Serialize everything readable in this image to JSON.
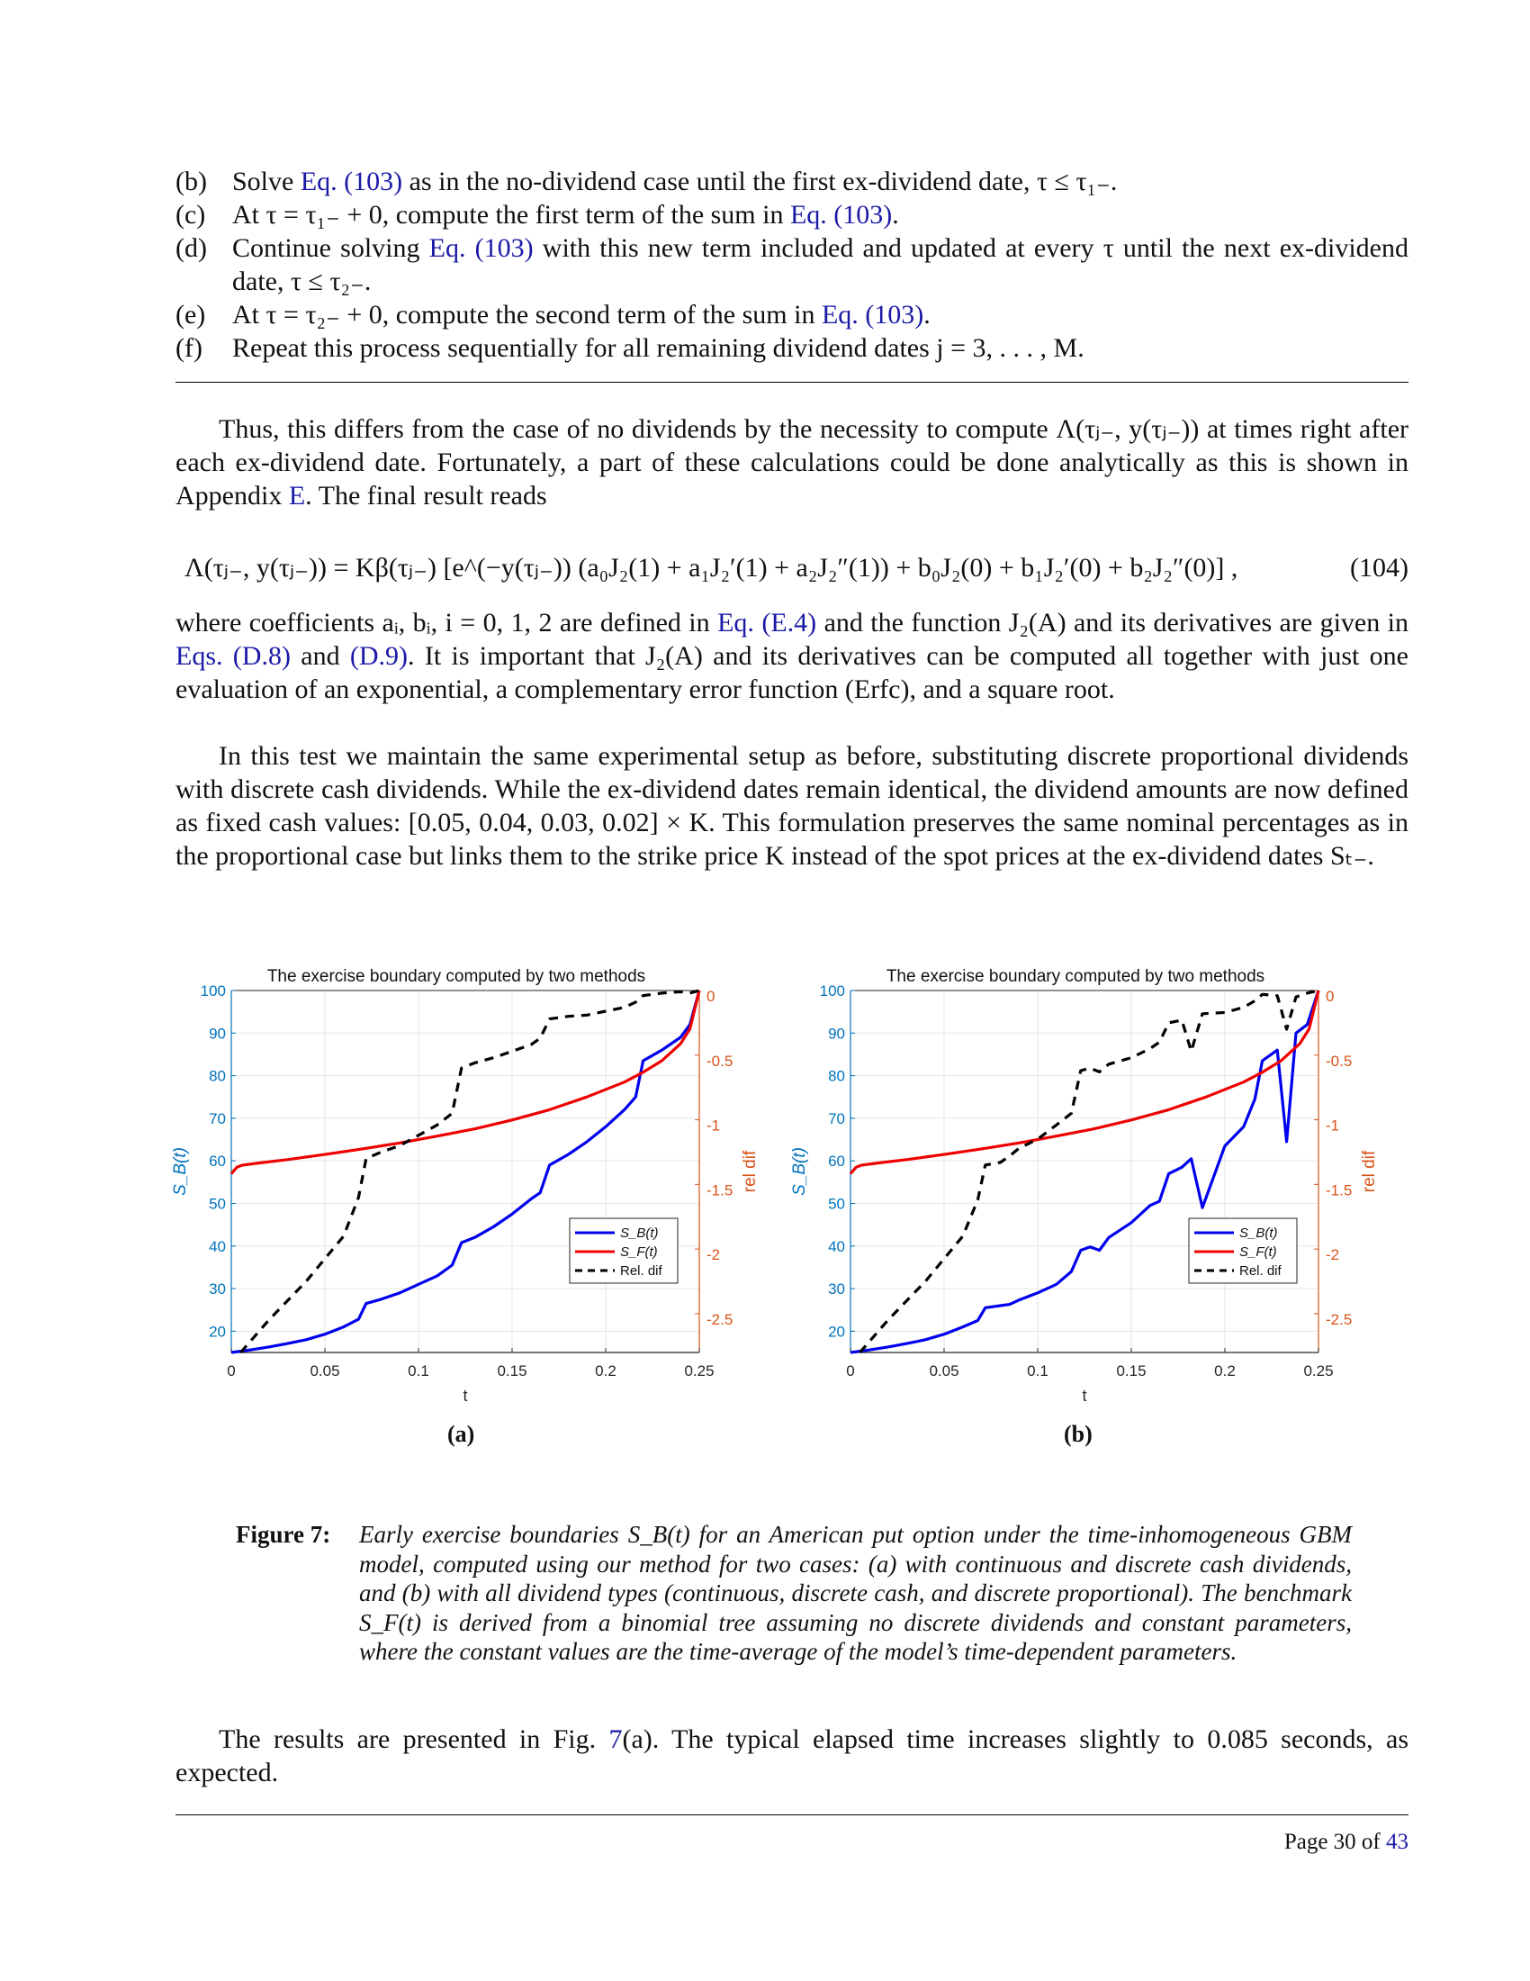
{
  "steps": [
    {
      "label": "(b)",
      "pre": "Solve ",
      "link": "Eq. (103)",
      "post": " as in the no-dividend case until the first ex-dividend date, τ ≤ τ₁₋."
    },
    {
      "label": "(c)",
      "pre": "At τ = τ₁₋ + 0, compute the first term of the sum in ",
      "link": "Eq. (103)",
      "post": "."
    },
    {
      "label": "(d)",
      "pre": "Continue solving ",
      "link": "Eq. (103)",
      "post": " with this new term included and updated at every τ until the next ex-dividend date, τ ≤ τ₂₋."
    },
    {
      "label": "(e)",
      "pre": "At τ = τ₂₋ + 0, compute the second term of the sum in ",
      "link": "Eq. (103)",
      "post": "."
    },
    {
      "label": "(f)",
      "pre": "Repeat this process sequentially for all remaining dividend dates j = 3, . . . , M.",
      "link": "",
      "post": ""
    }
  ],
  "para1": {
    "pre": "Thus, this differs from the case of no dividends by the necessity to compute Λ(τⱼ₋, y(τⱼ₋)) at times right after each ex-dividend date. Fortunately, a part of these calculations could be done analytically as this is shown in Appendix ",
    "link": "E",
    "post": ". The final result reads"
  },
  "equation": {
    "text": "Λ(τⱼ₋, y(τⱼ₋)) = Kβ(τⱼ₋) [e^(−y(τⱼ₋)) (a₀J₂(1) + a₁J₂′(1) + a₂J₂″(1)) + b₀J₂(0) + b₁J₂′(0) + b₂J₂″(0)] ,",
    "number": "(104)"
  },
  "para2": {
    "p1": "where coefficients aᵢ, bᵢ, i = 0, 1, 2 are defined in ",
    "l1": "Eq. (E.4)",
    "p2": " and the function J₂(A) and its derivatives are given in ",
    "l2": "Eqs. (D.8)",
    "p3": " and ",
    "l3": "(D.9)",
    "p4": ". It is important that J₂(A) and its derivatives can be computed all together with just one evaluation of an exponential, a complementary error function (Erfc), and a square root."
  },
  "para3": "In this test we maintain the same experimental setup as before, substituting discrete proportional dividends with discrete cash dividends. While the ex-dividend dates remain identical, the dividend amounts are now defined as fixed cash values: [0.05, 0.04, 0.03, 0.02] × K. This formulation preserves the same nominal percentages as in the proportional case but links them to the strike price K instead of the spot prices at the ex-dividend dates Sₜ₋.",
  "figure": {
    "colors": {
      "sb": "#0000ee",
      "sf": "#ee0000",
      "rel": "#000000",
      "left_axis": "#0072bd",
      "right_axis": "#d95319"
    },
    "legend": [
      "S_B(t)",
      "S_F(t)",
      "Rel. dif"
    ],
    "sublabels": [
      "(a)",
      "(b)"
    ]
  },
  "chart_data": [
    {
      "type": "line",
      "title": "The exercise boundary computed by two methods",
      "xlabel": "t",
      "ylabel": "S_B(t)",
      "y2label": "rel dif",
      "xlim": [
        0,
        0.25
      ],
      "ylim": [
        15,
        100
      ],
      "y2lim": [
        -2.8,
        0
      ],
      "xticks": [
        "0",
        "0.05",
        "0.1",
        "0.15",
        "0.2",
        "0.25"
      ],
      "yticks": [
        "20",
        "30",
        "40",
        "50",
        "60",
        "70",
        "80",
        "90",
        "100"
      ],
      "y2ticks": [
        "0",
        "-0.5",
        "-1",
        "-1.5",
        "-2",
        "-2.5"
      ],
      "grid": true,
      "legend_position": "center-right",
      "series": [
        {
          "name": "S_B(t)",
          "axis": "left",
          "x": [
            0,
            0.01,
            0.02,
            0.03,
            0.04,
            0.05,
            0.06,
            0.068,
            0.072,
            0.08,
            0.09,
            0.1,
            0.11,
            0.118,
            0.123,
            0.13,
            0.14,
            0.15,
            0.16,
            0.165,
            0.17,
            0.18,
            0.19,
            0.2,
            0.21,
            0.216,
            0.22,
            0.23,
            0.24,
            0.245,
            0.25
          ],
          "y": [
            15,
            15.6,
            16.3,
            17.1,
            18,
            19.3,
            21,
            22.8,
            26.5,
            27.5,
            29,
            31,
            33,
            35.5,
            40.8,
            42,
            44.5,
            47.5,
            51,
            52.5,
            59,
            61.5,
            64.5,
            68,
            72,
            75,
            83.5,
            86,
            89,
            92,
            100
          ]
        },
        {
          "name": "S_F(t)",
          "axis": "left",
          "x": [
            0,
            0.003,
            0.006,
            0.015,
            0.03,
            0.05,
            0.07,
            0.09,
            0.11,
            0.13,
            0.15,
            0.17,
            0.19,
            0.21,
            0.22,
            0.23,
            0.24,
            0.245,
            0.25
          ],
          "y": [
            57,
            58.5,
            59,
            59.5,
            60.3,
            61.5,
            62.8,
            64.2,
            65.8,
            67.5,
            69.6,
            72,
            75,
            78.5,
            80.8,
            83.5,
            87.5,
            91,
            100
          ]
        },
        {
          "name": "Rel. dif",
          "axis": "right",
          "x": [
            0.005,
            0.02,
            0.04,
            0.06,
            0.068,
            0.072,
            0.08,
            0.09,
            0.1,
            0.11,
            0.118,
            0.123,
            0.13,
            0.14,
            0.15,
            0.16,
            0.165,
            0.17,
            0.18,
            0.19,
            0.2,
            0.21,
            0.216,
            0.22,
            0.23,
            0.24,
            0.245,
            0.25
          ],
          "y": [
            -2.8,
            -2.55,
            -2.25,
            -1.9,
            -1.6,
            -1.3,
            -1.25,
            -1.2,
            -1.12,
            -1.04,
            -0.95,
            -0.6,
            -0.56,
            -0.52,
            -0.47,
            -0.42,
            -0.37,
            -0.22,
            -0.2,
            -0.19,
            -0.16,
            -0.13,
            -0.09,
            -0.04,
            -0.02,
            -0.01,
            -0.02,
            0
          ]
        }
      ]
    },
    {
      "type": "line",
      "title": "The exercise boundary computed by two methods",
      "xlabel": "t",
      "ylabel": "S_B(t)",
      "y2label": "rel dif",
      "xlim": [
        0,
        0.25
      ],
      "ylim": [
        15,
        100
      ],
      "y2lim": [
        -2.8,
        0
      ],
      "xticks": [
        "0",
        "0.05",
        "0.1",
        "0.15",
        "0.2",
        "0.25"
      ],
      "yticks": [
        "20",
        "30",
        "40",
        "50",
        "60",
        "70",
        "80",
        "90",
        "100"
      ],
      "y2ticks": [
        "0",
        "-0.5",
        "-1",
        "-1.5",
        "-2",
        "-2.5"
      ],
      "grid": true,
      "legend_position": "center-right",
      "series": [
        {
          "name": "S_B(t)",
          "axis": "left",
          "x": [
            0,
            0.01,
            0.02,
            0.03,
            0.04,
            0.05,
            0.06,
            0.068,
            0.072,
            0.08,
            0.085,
            0.09,
            0.1,
            0.11,
            0.118,
            0.123,
            0.128,
            0.133,
            0.138,
            0.15,
            0.16,
            0.165,
            0.17,
            0.177,
            0.182,
            0.188,
            0.2,
            0.21,
            0.216,
            0.22,
            0.228,
            0.233,
            0.238,
            0.244,
            0.25
          ],
          "y": [
            15,
            15.6,
            16.3,
            17.1,
            18,
            19.3,
            21,
            22.5,
            25.5,
            26,
            26.3,
            27.3,
            29,
            31,
            34,
            39,
            39.8,
            39,
            42,
            45.5,
            49.5,
            50.5,
            57,
            58.5,
            60.5,
            49,
            63.5,
            68,
            74.5,
            83.5,
            86,
            64.5,
            90,
            92,
            100
          ]
        },
        {
          "name": "S_F(t)",
          "axis": "left",
          "x": [
            0,
            0.003,
            0.006,
            0.015,
            0.03,
            0.05,
            0.07,
            0.09,
            0.11,
            0.13,
            0.15,
            0.17,
            0.19,
            0.21,
            0.22,
            0.23,
            0.24,
            0.245,
            0.25
          ],
          "y": [
            57,
            58.5,
            59,
            59.5,
            60.3,
            61.5,
            62.8,
            64.2,
            65.8,
            67.5,
            69.6,
            72,
            75,
            78.5,
            80.8,
            83.5,
            87.5,
            91,
            100
          ]
        },
        {
          "name": "Rel. dif",
          "axis": "right",
          "x": [
            0.005,
            0.02,
            0.04,
            0.06,
            0.068,
            0.072,
            0.08,
            0.085,
            0.09,
            0.1,
            0.11,
            0.118,
            0.123,
            0.128,
            0.133,
            0.138,
            0.15,
            0.16,
            0.165,
            0.17,
            0.177,
            0.182,
            0.188,
            0.2,
            0.21,
            0.216,
            0.22,
            0.228,
            0.233,
            0.238,
            0.244,
            0.25
          ],
          "y": [
            -2.8,
            -2.55,
            -2.25,
            -1.9,
            -1.62,
            -1.35,
            -1.33,
            -1.28,
            -1.22,
            -1.15,
            -1.04,
            -0.95,
            -0.62,
            -0.6,
            -0.63,
            -0.57,
            -0.52,
            -0.45,
            -0.4,
            -0.25,
            -0.23,
            -0.47,
            -0.18,
            -0.17,
            -0.13,
            -0.08,
            -0.03,
            -0.04,
            -0.3,
            -0.05,
            -0.02,
            0
          ]
        }
      ]
    }
  ],
  "caption": {
    "label": "Figure 7:",
    "text": "Early exercise boundaries S_B(t) for an American put option under the time-inhomogeneous GBM model, computed using our method for two cases: (a) with continuous and discrete cash dividends, and (b) with all dividend types (continuous, discrete cash, and discrete proportional). The benchmark S_F(t) is derived from a binomial tree assuming no discrete dividends and constant parameters, where the constant values are the time-average of the model’s time-dependent parameters."
  },
  "para4": {
    "pre": "The results are presented in Fig. ",
    "link": "7",
    "post": "(a). The typical elapsed time increases slightly to 0.085 seconds, as expected."
  },
  "footer": {
    "pre": "Page 30 of ",
    "total": "43"
  }
}
